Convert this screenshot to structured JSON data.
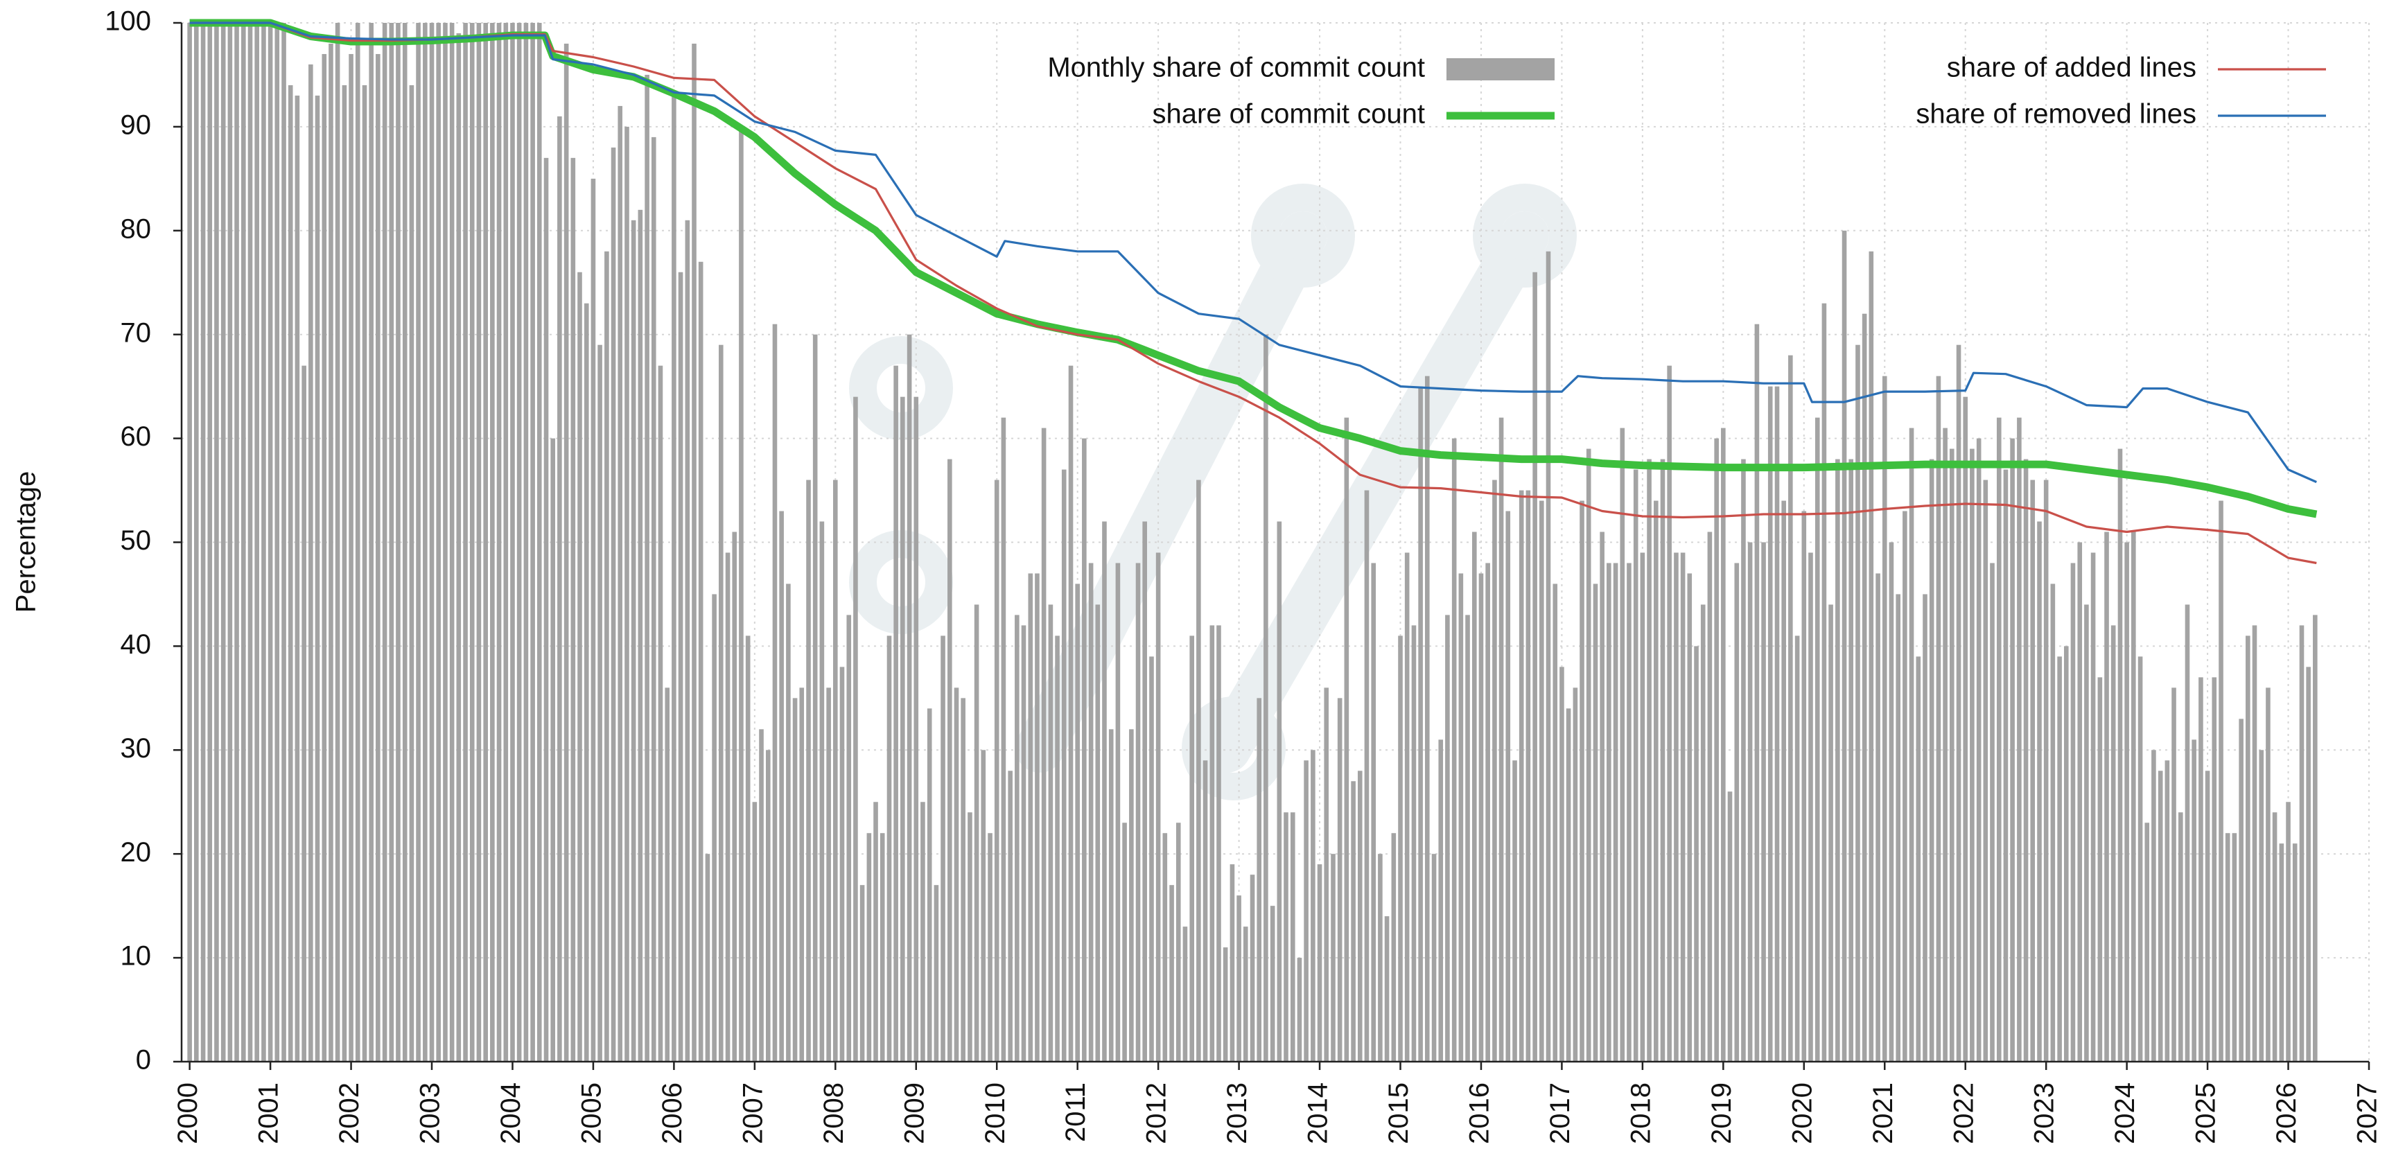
{
  "chart_data": {
    "type": "bar",
    "y_label": "Percentage",
    "ylim": [
      0,
      100
    ],
    "yticks": [
      0,
      10,
      20,
      30,
      40,
      50,
      60,
      70,
      80,
      90,
      100
    ],
    "xlim": [
      1999.9,
      2027
    ],
    "xticks": [
      2000,
      2001,
      2002,
      2003,
      2004,
      2005,
      2006,
      2007,
      2008,
      2009,
      2010,
      2011,
      2012,
      2013,
      2014,
      2015,
      2016,
      2017,
      2018,
      2019,
      2020,
      2021,
      2022,
      2023,
      2024,
      2025,
      2026,
      2027
    ],
    "grid": true,
    "legend": "top",
    "series": [
      {
        "name": "Monthly share of commit count",
        "type": "bar",
        "color": "#a3a3a3",
        "x": [
          2000,
          2000.083,
          2000.167,
          2000.25,
          2000.333,
          2000.417,
          2000.5,
          2000.583,
          2000.667,
          2000.75,
          2000.833,
          2000.917,
          2001,
          2001.083,
          2001.167,
          2001.25,
          2001.333,
          2001.417,
          2001.5,
          2001.583,
          2001.667,
          2001.75,
          2001.833,
          2001.917,
          2002,
          2002.083,
          2002.167,
          2002.25,
          2002.333,
          2002.417,
          2002.5,
          2002.583,
          2002.667,
          2002.75,
          2002.833,
          2002.917,
          2003,
          2003.083,
          2003.167,
          2003.25,
          2003.333,
          2003.417,
          2003.5,
          2003.583,
          2003.667,
          2003.75,
          2003.833,
          2003.917,
          2004,
          2004.083,
          2004.167,
          2004.25,
          2004.333,
          2004.417,
          2004.5,
          2004.583,
          2004.667,
          2004.75,
          2004.833,
          2004.917,
          2005,
          2005.083,
          2005.167,
          2005.25,
          2005.333,
          2005.417,
          2005.5,
          2005.583,
          2005.667,
          2005.75,
          2005.833,
          2005.917,
          2006,
          2006.083,
          2006.167,
          2006.25,
          2006.333,
          2006.417,
          2006.5,
          2006.583,
          2006.667,
          2006.75,
          2006.833,
          2006.917,
          2007,
          2007.083,
          2007.167,
          2007.25,
          2007.333,
          2007.417,
          2007.5,
          2007.583,
          2007.667,
          2007.75,
          2007.833,
          2007.917,
          2008,
          2008.083,
          2008.167,
          2008.25,
          2008.333,
          2008.417,
          2008.5,
          2008.583,
          2008.667,
          2008.75,
          2008.833,
          2008.917,
          2009,
          2009.083,
          2009.167,
          2009.25,
          2009.333,
          2009.417,
          2009.5,
          2009.583,
          2009.667,
          2009.75,
          2009.833,
          2009.917,
          2010,
          2010.083,
          2010.167,
          2010.25,
          2010.333,
          2010.417,
          2010.5,
          2010.583,
          2010.667,
          2010.75,
          2010.833,
          2010.917,
          2011,
          2011.083,
          2011.167,
          2011.25,
          2011.333,
          2011.417,
          2011.5,
          2011.583,
          2011.667,
          2011.75,
          2011.833,
          2011.917,
          2012,
          2012.083,
          2012.167,
          2012.25,
          2012.333,
          2012.417,
          2012.5,
          2012.583,
          2012.667,
          2012.75,
          2012.833,
          2012.917,
          2013,
          2013.083,
          2013.167,
          2013.25,
          2013.333,
          2013.417,
          2013.5,
          2013.583,
          2013.667,
          2013.75,
          2013.833,
          2013.917,
          2014,
          2014.083,
          2014.167,
          2014.25,
          2014.333,
          2014.417,
          2014.5,
          2014.583,
          2014.667,
          2014.75,
          2014.833,
          2014.917,
          2015,
          2015.083,
          2015.167,
          2015.25,
          2015.333,
          2015.417,
          2015.5,
          2015.583,
          2015.667,
          2015.75,
          2015.833,
          2015.917,
          2016,
          2016.083,
          2016.167,
          2016.25,
          2016.333,
          2016.417,
          2016.5,
          2016.583,
          2016.667,
          2016.75,
          2016.833,
          2016.917,
          2017,
          2017.083,
          2017.167,
          2017.25,
          2017.333,
          2017.417,
          2017.5,
          2017.583,
          2017.667,
          2017.75,
          2017.833,
          2017.917,
          2018,
          2018.083,
          2018.167,
          2018.25,
          2018.333,
          2018.417,
          2018.5,
          2018.583,
          2018.667,
          2018.75,
          2018.833,
          2018.917,
          2019,
          2019.083,
          2019.167,
          2019.25,
          2019.333,
          2019.417,
          2019.5,
          2019.583,
          2019.667,
          2019.75,
          2019.833,
          2019.917,
          2020,
          2020.083,
          2020.167,
          2020.25,
          2020.333,
          2020.417,
          2020.5,
          2020.583,
          2020.667,
          2020.75,
          2020.833,
          2020.917,
          2021,
          2021.083,
          2021.167,
          2021.25,
          2021.333,
          2021.417,
          2021.5,
          2021.583,
          2021.667,
          2021.75,
          2021.833,
          2021.917,
          2022,
          2022.083,
          2022.167,
          2022.25,
          2022.333,
          2022.417,
          2022.5,
          2022.583,
          2022.667,
          2022.75,
          2022.833,
          2022.917,
          2023,
          2023.083,
          2023.167,
          2023.25,
          2023.333,
          2023.417,
          2023.5,
          2023.583,
          2023.667,
          2023.75,
          2023.833,
          2023.917,
          2024,
          2024.083,
          2024.167,
          2024.25,
          2024.333,
          2024.417,
          2024.5,
          2024.583,
          2024.667,
          2024.75,
          2024.833,
          2024.917,
          2025,
          2025.083,
          2025.167,
          2025.25,
          2025.333,
          2025.417,
          2025.5,
          2025.583,
          2025.667,
          2025.75,
          2025.833,
          2025.917,
          2026,
          2026.083,
          2026.167,
          2026.25,
          2026.333
        ],
        "values": [
          100,
          100,
          100,
          100,
          100,
          100,
          100,
          100,
          100,
          100,
          100,
          100,
          100,
          100,
          100,
          94,
          93,
          67,
          96,
          93,
          97,
          98,
          100,
          94,
          97,
          100,
          94,
          100,
          97,
          100,
          100,
          100,
          100,
          94,
          100,
          100,
          100,
          100,
          100,
          100,
          99,
          100,
          100,
          100,
          100,
          100,
          100,
          100,
          100,
          100,
          100,
          100,
          100,
          87,
          60,
          91,
          98,
          87,
          76,
          73,
          85,
          69,
          78,
          88,
          92,
          90,
          81,
          82,
          95,
          89,
          67,
          36,
          93,
          76,
          81,
          98,
          77,
          20,
          45,
          69,
          49,
          51,
          90,
          41,
          25,
          32,
          30,
          71,
          53,
          46,
          35,
          36,
          56,
          70,
          52,
          36,
          56,
          38,
          43,
          64,
          17,
          22,
          25,
          22,
          41,
          67,
          64,
          70,
          64,
          25,
          34,
          17,
          41,
          58,
          36,
          35,
          24,
          44,
          30,
          22,
          56,
          62,
          28,
          43,
          42,
          47,
          47,
          61,
          44,
          41,
          57,
          67,
          46,
          60,
          48,
          44,
          52,
          32,
          48,
          23,
          32,
          48,
          52,
          39,
          49,
          22,
          17,
          23,
          13,
          41,
          56,
          29,
          42,
          42,
          11,
          19,
          16,
          13,
          18,
          35,
          70,
          15,
          52,
          24,
          24,
          10,
          29,
          30,
          19,
          36,
          20,
          35,
          62,
          27,
          28,
          55,
          48,
          20,
          14,
          22,
          41,
          49,
          42,
          65,
          66,
          20,
          31,
          43,
          60,
          47,
          43,
          51,
          47,
          48,
          56,
          62,
          53,
          29,
          55,
          55,
          76,
          54,
          78,
          46,
          38,
          34,
          36,
          54,
          59,
          46,
          51,
          48,
          48,
          61,
          48,
          57,
          49,
          58,
          54,
          58,
          67,
          49,
          49,
          47,
          40,
          44,
          51,
          60,
          61,
          26,
          48,
          58,
          50,
          71,
          50,
          65,
          65,
          54,
          68,
          41,
          53,
          49,
          62,
          73,
          44,
          58,
          80,
          58,
          69,
          72,
          78,
          47,
          66,
          50,
          45,
          53,
          61,
          39,
          45,
          58,
          66,
          61,
          59,
          69,
          64,
          59,
          60,
          56,
          48,
          62,
          57,
          60,
          62,
          58,
          56,
          52,
          56,
          46,
          39,
          40,
          48,
          50,
          44,
          49,
          37,
          51,
          42,
          59,
          50,
          51,
          39,
          23,
          30,
          28,
          29,
          36,
          24,
          44,
          31,
          37,
          28,
          37,
          54,
          22,
          22,
          33,
          41,
          42,
          30,
          36,
          24,
          21,
          25,
          21,
          42,
          38,
          43
        ]
      },
      {
        "name": "share of commit count",
        "type": "line",
        "color": "#3dbf3d",
        "x": [
          2000,
          2000.5,
          2001,
          2001.5,
          2002,
          2002.5,
          2003,
          2003.5,
          2004,
          2004.4,
          2004.5,
          2005,
          2005.5,
          2006,
          2006.5,
          2007,
          2007.5,
          2008,
          2008.5,
          2009,
          2009.5,
          2010,
          2010.5,
          2011,
          2011.5,
          2012,
          2012.5,
          2013,
          2013.5,
          2014,
          2014.5,
          2015,
          2015.5,
          2016,
          2016.5,
          2017,
          2017.5,
          2018,
          2018.5,
          2019,
          2019.5,
          2020,
          2020.5,
          2021,
          2021.5,
          2022,
          2022.5,
          2023,
          2023.5,
          2024,
          2024.5,
          2025,
          2025.5,
          2026,
          2026.35
        ],
        "values": [
          100,
          100,
          100,
          98.7,
          98.2,
          98.2,
          98.3,
          98.5,
          98.8,
          98.8,
          96.8,
          95.5,
          94.8,
          93.2,
          91.5,
          89,
          85.5,
          82.5,
          80,
          76,
          74,
          72,
          71,
          70.2,
          69.5,
          68,
          66.5,
          65.5,
          63,
          61,
          60,
          58.8,
          58.4,
          58.2,
          58,
          58,
          57.6,
          57.4,
          57.3,
          57.2,
          57.2,
          57.2,
          57.3,
          57.4,
          57.5,
          57.5,
          57.5,
          57.5,
          57,
          56.5,
          56,
          55.3,
          54.4,
          53.2,
          52.7
        ]
      },
      {
        "name": "share of added lines",
        "type": "line",
        "color": "#c9504a",
        "x": [
          2000,
          2000.5,
          2001,
          2001.5,
          2002,
          2002.5,
          2003,
          2003.5,
          2004,
          2004.4,
          2004.5,
          2005,
          2005.5,
          2006,
          2006.5,
          2007,
          2007.5,
          2008,
          2008.5,
          2009,
          2009.5,
          2010,
          2010.5,
          2011,
          2011.5,
          2012,
          2012.5,
          2013,
          2013.5,
          2014,
          2014.5,
          2015,
          2015.5,
          2016,
          2016.5,
          2017,
          2017.5,
          2018,
          2018.5,
          2019,
          2019.5,
          2020,
          2020.5,
          2021,
          2021.5,
          2022,
          2022.5,
          2023,
          2023.5,
          2024,
          2024.5,
          2025,
          2025.5,
          2026,
          2026.35
        ],
        "values": [
          100,
          100,
          100,
          98.6,
          98.3,
          98.3,
          98.4,
          98.6,
          98.9,
          98.9,
          97.3,
          96.7,
          95.8,
          94.7,
          94.5,
          91,
          88.5,
          86,
          84,
          77.2,
          74.7,
          72.5,
          70.8,
          70,
          69.5,
          67.2,
          65.5,
          64,
          62,
          59.5,
          56.5,
          55.3,
          55.2,
          54.8,
          54.4,
          54.3,
          53,
          52.5,
          52.4,
          52.5,
          52.7,
          52.7,
          52.8,
          53.2,
          53.5,
          53.7,
          53.6,
          53,
          51.5,
          51,
          51.5,
          51.2,
          50.8,
          48.5,
          48
        ]
      },
      {
        "name": "share of removed lines",
        "type": "line",
        "color": "#2a6fb5",
        "x": [
          2000,
          2000.5,
          2001,
          2001.5,
          2002,
          2002.5,
          2003,
          2003.5,
          2004,
          2004.4,
          2004.5,
          2005,
          2005.5,
          2006,
          2006.5,
          2007,
          2007.5,
          2008,
          2008.5,
          2009,
          2009.5,
          2010,
          2010.1,
          2010.5,
          2011,
          2011.5,
          2012,
          2012.5,
          2013,
          2013.5,
          2014,
          2014.5,
          2015,
          2015.5,
          2016,
          2016.5,
          2017,
          2017.2,
          2017.5,
          2018,
          2018.5,
          2019,
          2019.5,
          2020,
          2020.1,
          2020.5,
          2021,
          2021.5,
          2022,
          2022.1,
          2022.5,
          2023,
          2023.5,
          2024,
          2024.2,
          2024.5,
          2025,
          2025.5,
          2026,
          2026.35
        ],
        "values": [
          100,
          100,
          100,
          98.7,
          98.5,
          98.4,
          98.4,
          98.6,
          98.8,
          98.8,
          96.5,
          96,
          95,
          93.3,
          93,
          90.5,
          89.5,
          87.7,
          87.3,
          81.5,
          79.5,
          77.5,
          79,
          78.5,
          78,
          78,
          74,
          72,
          71.5,
          69,
          68,
          67,
          65,
          64.8,
          64.6,
          64.5,
          64.5,
          66,
          65.8,
          65.7,
          65.5,
          65.5,
          65.3,
          65.3,
          63.5,
          63.5,
          64.5,
          64.5,
          64.6,
          66.3,
          66.2,
          65,
          63.2,
          63,
          64.8,
          64.8,
          63.5,
          62.5,
          57,
          55.8
        ]
      }
    ]
  }
}
